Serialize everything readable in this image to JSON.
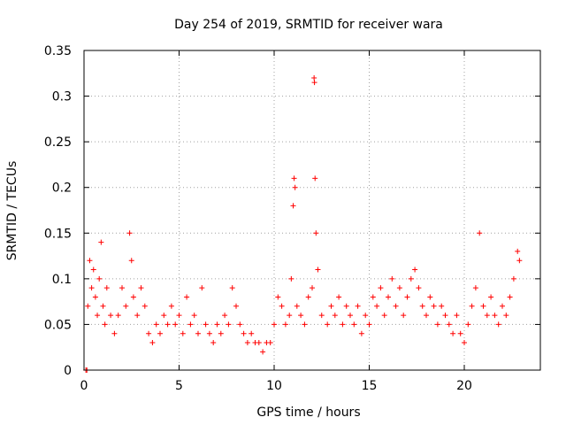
{
  "chart_data": {
    "type": "scatter",
    "title": "Day 254 of 2019, SRMTID for receiver wara",
    "xlabel": "GPS time / hours",
    "ylabel": "SRMTID / TECUs",
    "xlim": [
      0,
      24
    ],
    "ylim": [
      0,
      0.35
    ],
    "xticks": [
      0,
      5,
      10,
      15,
      20
    ],
    "xtick_labels": [
      "0",
      "5",
      "10",
      "15",
      "20"
    ],
    "yticks": [
      0,
      0.05,
      0.1,
      0.15,
      0.2,
      0.25,
      0.3,
      0.35
    ],
    "ytick_labels": [
      "0",
      "0.05",
      "0.1",
      "0.15",
      "0.2",
      "0.25",
      "0.3",
      "0.35"
    ],
    "grid": true,
    "marker": "plus",
    "color": "#ff0000",
    "series": [
      {
        "name": "SRMTID",
        "points": [
          [
            0.1,
            0.0
          ],
          [
            0.15,
            0.0
          ],
          [
            0.2,
            0.07
          ],
          [
            0.3,
            0.12
          ],
          [
            0.4,
            0.09
          ],
          [
            0.5,
            0.11
          ],
          [
            0.6,
            0.08
          ],
          [
            0.7,
            0.06
          ],
          [
            0.8,
            0.1
          ],
          [
            0.9,
            0.14
          ],
          [
            1.0,
            0.07
          ],
          [
            1.1,
            0.05
          ],
          [
            1.2,
            0.09
          ],
          [
            1.4,
            0.06
          ],
          [
            1.6,
            0.04
          ],
          [
            1.8,
            0.06
          ],
          [
            2.0,
            0.09
          ],
          [
            2.2,
            0.07
          ],
          [
            2.4,
            0.15
          ],
          [
            2.5,
            0.12
          ],
          [
            2.6,
            0.08
          ],
          [
            2.8,
            0.06
          ],
          [
            3.0,
            0.09
          ],
          [
            3.2,
            0.07
          ],
          [
            3.4,
            0.04
          ],
          [
            3.6,
            0.03
          ],
          [
            3.8,
            0.05
          ],
          [
            4.0,
            0.04
          ],
          [
            4.2,
            0.06
          ],
          [
            4.4,
            0.05
          ],
          [
            4.6,
            0.07
          ],
          [
            4.8,
            0.05
          ],
          [
            5.0,
            0.06
          ],
          [
            5.2,
            0.04
          ],
          [
            5.4,
            0.08
          ],
          [
            5.6,
            0.05
          ],
          [
            5.8,
            0.06
          ],
          [
            6.0,
            0.04
          ],
          [
            6.2,
            0.09
          ],
          [
            6.4,
            0.05
          ],
          [
            6.6,
            0.04
          ],
          [
            6.8,
            0.03
          ],
          [
            7.0,
            0.05
          ],
          [
            7.2,
            0.04
          ],
          [
            7.4,
            0.06
          ],
          [
            7.6,
            0.05
          ],
          [
            7.8,
            0.09
          ],
          [
            8.0,
            0.07
          ],
          [
            8.2,
            0.05
          ],
          [
            8.4,
            0.04
          ],
          [
            8.6,
            0.03
          ],
          [
            8.8,
            0.04
          ],
          [
            9.0,
            0.03
          ],
          [
            9.2,
            0.03
          ],
          [
            9.4,
            0.02
          ],
          [
            9.6,
            0.03
          ],
          [
            9.8,
            0.03
          ],
          [
            10.0,
            0.05
          ],
          [
            10.2,
            0.08
          ],
          [
            10.4,
            0.07
          ],
          [
            10.6,
            0.05
          ],
          [
            10.8,
            0.06
          ],
          [
            10.9,
            0.1
          ],
          [
            11.0,
            0.18
          ],
          [
            11.05,
            0.21
          ],
          [
            11.1,
            0.2
          ],
          [
            11.2,
            0.07
          ],
          [
            11.4,
            0.06
          ],
          [
            11.6,
            0.05
          ],
          [
            11.8,
            0.08
          ],
          [
            12.0,
            0.09
          ],
          [
            12.1,
            0.32
          ],
          [
            12.12,
            0.315
          ],
          [
            12.15,
            0.21
          ],
          [
            12.2,
            0.15
          ],
          [
            12.3,
            0.11
          ],
          [
            12.5,
            0.06
          ],
          [
            12.8,
            0.05
          ],
          [
            13.0,
            0.07
          ],
          [
            13.2,
            0.06
          ],
          [
            13.4,
            0.08
          ],
          [
            13.6,
            0.05
          ],
          [
            13.8,
            0.07
          ],
          [
            14.0,
            0.06
          ],
          [
            14.2,
            0.05
          ],
          [
            14.4,
            0.07
          ],
          [
            14.6,
            0.04
          ],
          [
            14.8,
            0.06
          ],
          [
            15.0,
            0.05
          ],
          [
            15.2,
            0.08
          ],
          [
            15.4,
            0.07
          ],
          [
            15.6,
            0.09
          ],
          [
            15.8,
            0.06
          ],
          [
            16.0,
            0.08
          ],
          [
            16.2,
            0.1
          ],
          [
            16.4,
            0.07
          ],
          [
            16.6,
            0.09
          ],
          [
            16.8,
            0.06
          ],
          [
            17.0,
            0.08
          ],
          [
            17.2,
            0.1
          ],
          [
            17.4,
            0.11
          ],
          [
            17.6,
            0.09
          ],
          [
            17.8,
            0.07
          ],
          [
            18.0,
            0.06
          ],
          [
            18.2,
            0.08
          ],
          [
            18.4,
            0.07
          ],
          [
            18.6,
            0.05
          ],
          [
            18.8,
            0.07
          ],
          [
            19.0,
            0.06
          ],
          [
            19.2,
            0.05
          ],
          [
            19.4,
            0.04
          ],
          [
            19.6,
            0.06
          ],
          [
            19.8,
            0.04
          ],
          [
            20.0,
            0.03
          ],
          [
            20.2,
            0.05
          ],
          [
            20.4,
            0.07
          ],
          [
            20.6,
            0.09
          ],
          [
            20.8,
            0.15
          ],
          [
            21.0,
            0.07
          ],
          [
            21.2,
            0.06
          ],
          [
            21.4,
            0.08
          ],
          [
            21.6,
            0.06
          ],
          [
            21.8,
            0.05
          ],
          [
            22.0,
            0.07
          ],
          [
            22.2,
            0.06
          ],
          [
            22.4,
            0.08
          ],
          [
            22.6,
            0.1
          ],
          [
            22.8,
            0.13
          ],
          [
            22.9,
            0.12
          ]
        ]
      }
    ]
  }
}
